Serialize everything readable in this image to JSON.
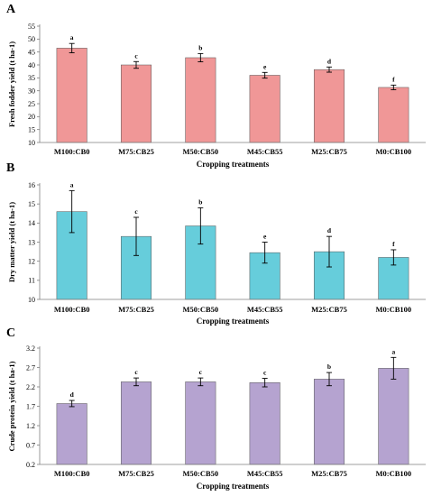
{
  "chart_data": [
    {
      "type": "bar",
      "panel_label": "A",
      "categories": [
        "M100:CB0",
        "M75:CB25",
        "M50:CB50",
        "M45:CB55",
        "M25:CB75",
        "M0:CB100"
      ],
      "values": [
        46.5,
        40.0,
        42.8,
        36.0,
        38.2,
        31.3
      ],
      "errors": [
        1.8,
        1.3,
        1.6,
        1.1,
        1.0,
        0.9
      ],
      "significance": [
        "a",
        "c",
        "b",
        "e",
        "d",
        "f"
      ],
      "xlabel": "Cropping treatments",
      "ylabel": "Fresh fodder yield (t ha-1)",
      "ylim": [
        10,
        55
      ],
      "yticks": [
        "10",
        "15",
        "20",
        "25",
        "30",
        "35",
        "40",
        "45",
        "50",
        "55"
      ],
      "bar_color": "#f09797",
      "grid": false
    },
    {
      "type": "bar",
      "panel_label": "B",
      "categories": [
        "M100:CB0",
        "M75:CB25",
        "M50:CB50",
        "M45:CB55",
        "M25:CB75",
        "M0:CB100"
      ],
      "values": [
        14.6,
        13.3,
        13.85,
        12.45,
        12.5,
        12.2
      ],
      "errors": [
        1.1,
        1.0,
        0.95,
        0.55,
        0.8,
        0.4
      ],
      "significance": [
        "a",
        "c",
        "b",
        "e",
        "d",
        "f"
      ],
      "xlabel": "Cropping treatments",
      "ylabel": "Dry matter yield (t ha-1)",
      "ylim": [
        10,
        16
      ],
      "yticks": [
        "10",
        "11",
        "12",
        "13",
        "14",
        "15",
        "16"
      ],
      "bar_color": "#66cddb",
      "grid": false
    },
    {
      "type": "bar",
      "panel_label": "C",
      "categories": [
        "M100:CB0",
        "M75:CB25",
        "M50:CB50",
        "M45:CB55",
        "M25:CB75",
        "M0:CB100"
      ],
      "values": [
        1.77,
        2.33,
        2.33,
        2.31,
        2.4,
        2.68
      ],
      "errors": [
        0.08,
        0.1,
        0.1,
        0.11,
        0.17,
        0.28
      ],
      "significance": [
        "d",
        "c",
        "c",
        "c",
        "b",
        "a"
      ],
      "xlabel": "Cropping treatments",
      "ylabel": "Crude protein yield (t ha-1)",
      "ylim": [
        0.2,
        3.2
      ],
      "yticks": [
        "0.2",
        "0.7",
        "1.2",
        "1.7",
        "2.2",
        "2.7",
        "3.2"
      ],
      "bar_color": "#b5a3d0",
      "grid": false
    }
  ]
}
